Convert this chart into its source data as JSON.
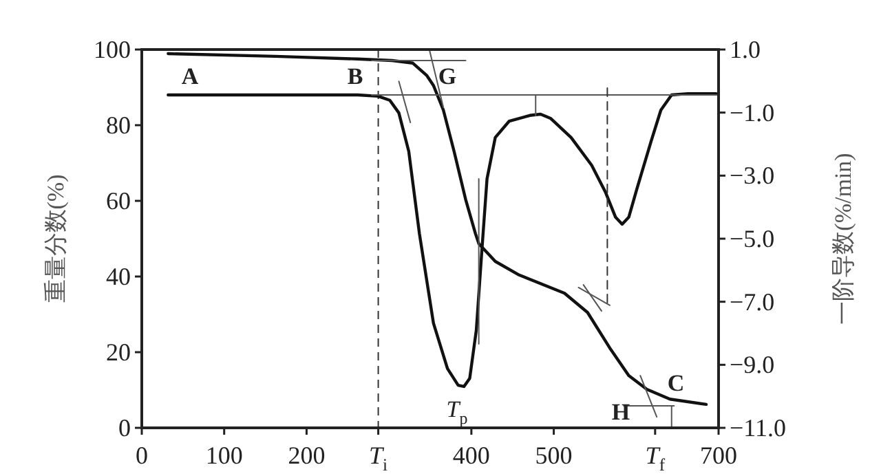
{
  "chart_data": {
    "type": "line",
    "ylabel": "重量分数(%)",
    "y2label": "一阶导数(%/min)",
    "xlim": [
      0,
      700
    ],
    "ylim": [
      0,
      100
    ],
    "y2lim": [
      -11,
      1
    ],
    "xticks": [
      0,
      100,
      200,
      {
        "value": 287,
        "label": "*T*$_{i}$"
      },
      400,
      500,
      {
        "value": 623,
        "label": "*T*$_{f}$"
      },
      700
    ],
    "yticks": [
      0,
      20,
      40,
      60,
      80,
      100
    ],
    "y2ticks": [
      {
        "value": 1,
        "label": "1.0"
      },
      {
        "value": -1,
        "label": "−1.0"
      },
      {
        "value": -3,
        "label": "−3.0"
      },
      {
        "value": -5,
        "label": "−5.0"
      },
      {
        "value": -7,
        "label": "−7.0"
      },
      {
        "value": -9,
        "label": "−9.0"
      },
      {
        "value": -11,
        "label": "−11.0"
      }
    ],
    "series": [
      {
        "color": "#111111",
        "x": [
          32,
          162,
          262,
          304,
          329,
          346,
          354,
          366,
          379,
          393,
          405,
          409,
          429,
          458,
          513,
          541,
          568,
          591,
          613,
          641,
          685
        ],
        "values": [
          98.9,
          98.2,
          97.5,
          97.1,
          96.4,
          93.1,
          90.5,
          84.0,
          73.1,
          60.4,
          51.3,
          48.7,
          44.0,
          40.4,
          35.6,
          30.5,
          21.1,
          13.8,
          10.2,
          7.6,
          6.2
        ]
      },
      {
        "color": "#111111",
        "axis": "y2",
        "x": [
          32,
          262,
          287,
          301,
          312,
          324,
          337,
          354,
          371,
          384,
          391,
          398,
          406,
          413,
          419,
          429,
          446,
          471,
          484,
          496,
          521,
          546,
          563,
          575,
          583,
          591,
          601,
          618,
          630,
          643,
          663,
          697
        ],
        "values": [
          -0.44,
          -0.44,
          -0.48,
          -0.61,
          -1.01,
          -2.23,
          -4.85,
          -7.68,
          -9.12,
          -9.65,
          -9.69,
          -9.43,
          -7.9,
          -5.28,
          -3.1,
          -1.79,
          -1.27,
          -1.09,
          -1.05,
          -1.18,
          -1.79,
          -2.67,
          -3.54,
          -4.32,
          -4.54,
          -4.32,
          -3.41,
          -1.92,
          -0.92,
          -0.44,
          -0.4,
          -0.4
        ]
      },
      {
        "color": "#555555",
        "x": [
          279,
          393
        ],
        "values": [
          97.1,
          97.1
        ]
      },
      {
        "color": "#555555",
        "x": [
          349,
          366
        ],
        "values": [
          100,
          84.7
        ]
      },
      {
        "color": "#555555",
        "x": [
          279,
          700
        ],
        "values": [
          88,
          88
        ]
      },
      {
        "color": "#555555",
        "x": [
          312,
          326
        ],
        "values": [
          91.6,
          80.7
        ]
      },
      {
        "color": "#555555",
        "x": [
          409,
          409
        ],
        "values": [
          65.8,
          22.2
        ]
      },
      {
        "color": "#555555",
        "x": [
          478,
          478
        ],
        "values": [
          88,
          82.5
        ]
      },
      {
        "color": "#555555",
        "x": [
          530,
          568
        ],
        "values": [
          37.1,
          32.4
        ]
      },
      {
        "color": "#555555",
        "x": [
          536,
          558
        ],
        "values": [
          37.8,
          30.9
        ]
      },
      {
        "color": "#555555",
        "x": [
          605,
          625
        ],
        "values": [
          13.8,
          2.9
        ]
      },
      {
        "color": "#555555",
        "x": [
          585,
          646
        ],
        "values": [
          5.8,
          5.8
        ]
      },
      {
        "color": "#555555",
        "x": [
          643,
          643
        ],
        "values": [
          5.8,
          0
        ]
      },
      {
        "color": "#333333",
        "line_style": "dashed",
        "x": [
          565,
          565
        ],
        "values": [
          89.8,
          33.1
        ]
      }
    ],
    "ref_lines": [
      {
        "axis": "x",
        "value": 287,
        "color": "#333333",
        "line_style": "dashed"
      }
    ],
    "annotations": [
      "**A**",
      "**B**",
      "**G**",
      "*T*$_{p}$",
      "**H**",
      "**C**"
    ]
  }
}
